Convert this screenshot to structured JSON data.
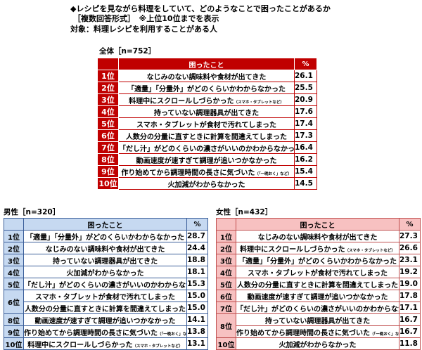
{
  "header": {
    "line1": "◆レシピを見ながら料理をしていて、どのようなことで困ったことがあるか",
    "line2": "［複数回答形式］　※上位10位までを表示",
    "line3": "対象：料理レシピを利用することがある人"
  },
  "columns": {
    "item": "困ったこと",
    "pct": "%"
  },
  "colors": {
    "all": "#c00000",
    "male": "#c6d9f1",
    "female": "#f7c1c1"
  },
  "tables": [
    {
      "id": "t-all",
      "title": "全体［n=752］",
      "rows": [
        {
          "rank": "1位",
          "text": "なじみのない調味料や食材が出てきた",
          "note": "",
          "pct": "26.1"
        },
        {
          "rank": "2位",
          "text": "「適量」「分量外」がどのくらいかわからなかった",
          "note": "",
          "pct": "25.5"
        },
        {
          "rank": "3位",
          "text": "料理中にスクロールしづらかった",
          "note": "（スマホ・タブレットなど）",
          "pct": "20.9"
        },
        {
          "rank": "4位",
          "text": "持っていない調理器具が出てきた",
          "note": "",
          "pct": "17.6"
        },
        {
          "rank": "5位",
          "text": "スマホ・タブレットが食材で汚れてしまった",
          "note": "",
          "pct": "17.4"
        },
        {
          "rank": "6位",
          "text": "人数分の分量に直すときに計算を間違えてしまった",
          "note": "",
          "pct": "17.3"
        },
        {
          "rank": "7位",
          "text": "「だし汁」がどのくらいの濃さがいいのかわからなかった",
          "note": "",
          "pct": "16.4"
        },
        {
          "rank": "8位",
          "text": "動画速度が速すぎて調理が追いつかなかった",
          "note": "",
          "pct": "16.2"
        },
        {
          "rank": "9位",
          "text": "作り始めてから調理時間の長さに気づいた",
          "note": "（「一晩おく」など）",
          "pct": "15.4"
        },
        {
          "rank": "10位",
          "text": "火加減がわからなかった",
          "note": "",
          "pct": "14.5"
        }
      ]
    },
    {
      "id": "t-m",
      "title": "男性［n=320］",
      "rows": [
        {
          "rank": "1位",
          "text": "「適量」「分量外」がどのくらいかわからなかった",
          "note": "",
          "pct": "28.7"
        },
        {
          "rank": "2位",
          "text": "なじみのない調味料や食材が出てきた",
          "note": "",
          "pct": "24.4"
        },
        {
          "rank": "3位",
          "text": "持っていない調理器具が出てきた",
          "note": "",
          "pct": "18.8"
        },
        {
          "rank": "4位",
          "text": "火加減がわからなかった",
          "note": "",
          "pct": "18.1"
        },
        {
          "rank": "5位",
          "text": "「だし汁」がどのくらいの濃さがいいのかわからなかった",
          "note": "",
          "pct": "15.3"
        },
        {
          "rank": "6位",
          "text": "スマホ・タブレットが食材で汚れてしまった",
          "note": "",
          "pct": "15.0"
        },
        {
          "rank": "6位",
          "text": "人数分の分量に直すときに計算を間違えてしまった",
          "note": "",
          "pct": "15.0"
        },
        {
          "rank": "8位",
          "text": "動画速度が速すぎて調理が追いつかなかった",
          "note": "",
          "pct": "14.1"
        },
        {
          "rank": "9位",
          "text": "作り始めてから調理時間の長さに気づいた",
          "note": "（「一晩おく」など）",
          "pct": "13.8"
        },
        {
          "rank": "10位",
          "text": "料理中にスクロールしづらかった",
          "note": "（スマホ・タブレットなど）",
          "pct": "13.1"
        }
      ]
    },
    {
      "id": "t-f",
      "title": "女性［n=432］",
      "rows": [
        {
          "rank": "1位",
          "text": "なじみのない調味料や食材が出てきた",
          "note": "",
          "pct": "27.3"
        },
        {
          "rank": "2位",
          "text": "料理中にスクロールしづらかった",
          "note": "（スマホ・タブレットなど）",
          "pct": "26.6"
        },
        {
          "rank": "3位",
          "text": "「適量」「分量外」がどのくらいかわからなかった",
          "note": "",
          "pct": "23.1"
        },
        {
          "rank": "4位",
          "text": "スマホ・タブレットが食材で汚れてしまった",
          "note": "",
          "pct": "19.2"
        },
        {
          "rank": "5位",
          "text": "人数分の分量に直すときに計算を間違えてしまった",
          "note": "",
          "pct": "19.0"
        },
        {
          "rank": "6位",
          "text": "動画速度が速すぎて調理が追いつかなかった",
          "note": "",
          "pct": "17.8"
        },
        {
          "rank": "7位",
          "text": "「だし汁」がどのくらいの濃さがいいのかわからなかった",
          "note": "",
          "pct": "17.1"
        },
        {
          "rank": "8位",
          "text": "持っていない調理器具が出てきた",
          "note": "",
          "pct": "16.7"
        },
        {
          "rank": "8位",
          "text": "作り始めてから調理時間の長さに気づいた",
          "note": "（「一晩おく」など）",
          "pct": "16.7"
        },
        {
          "rank": "10位",
          "text": "火加減がわからなかった",
          "note": "",
          "pct": "11.8"
        }
      ]
    }
  ]
}
